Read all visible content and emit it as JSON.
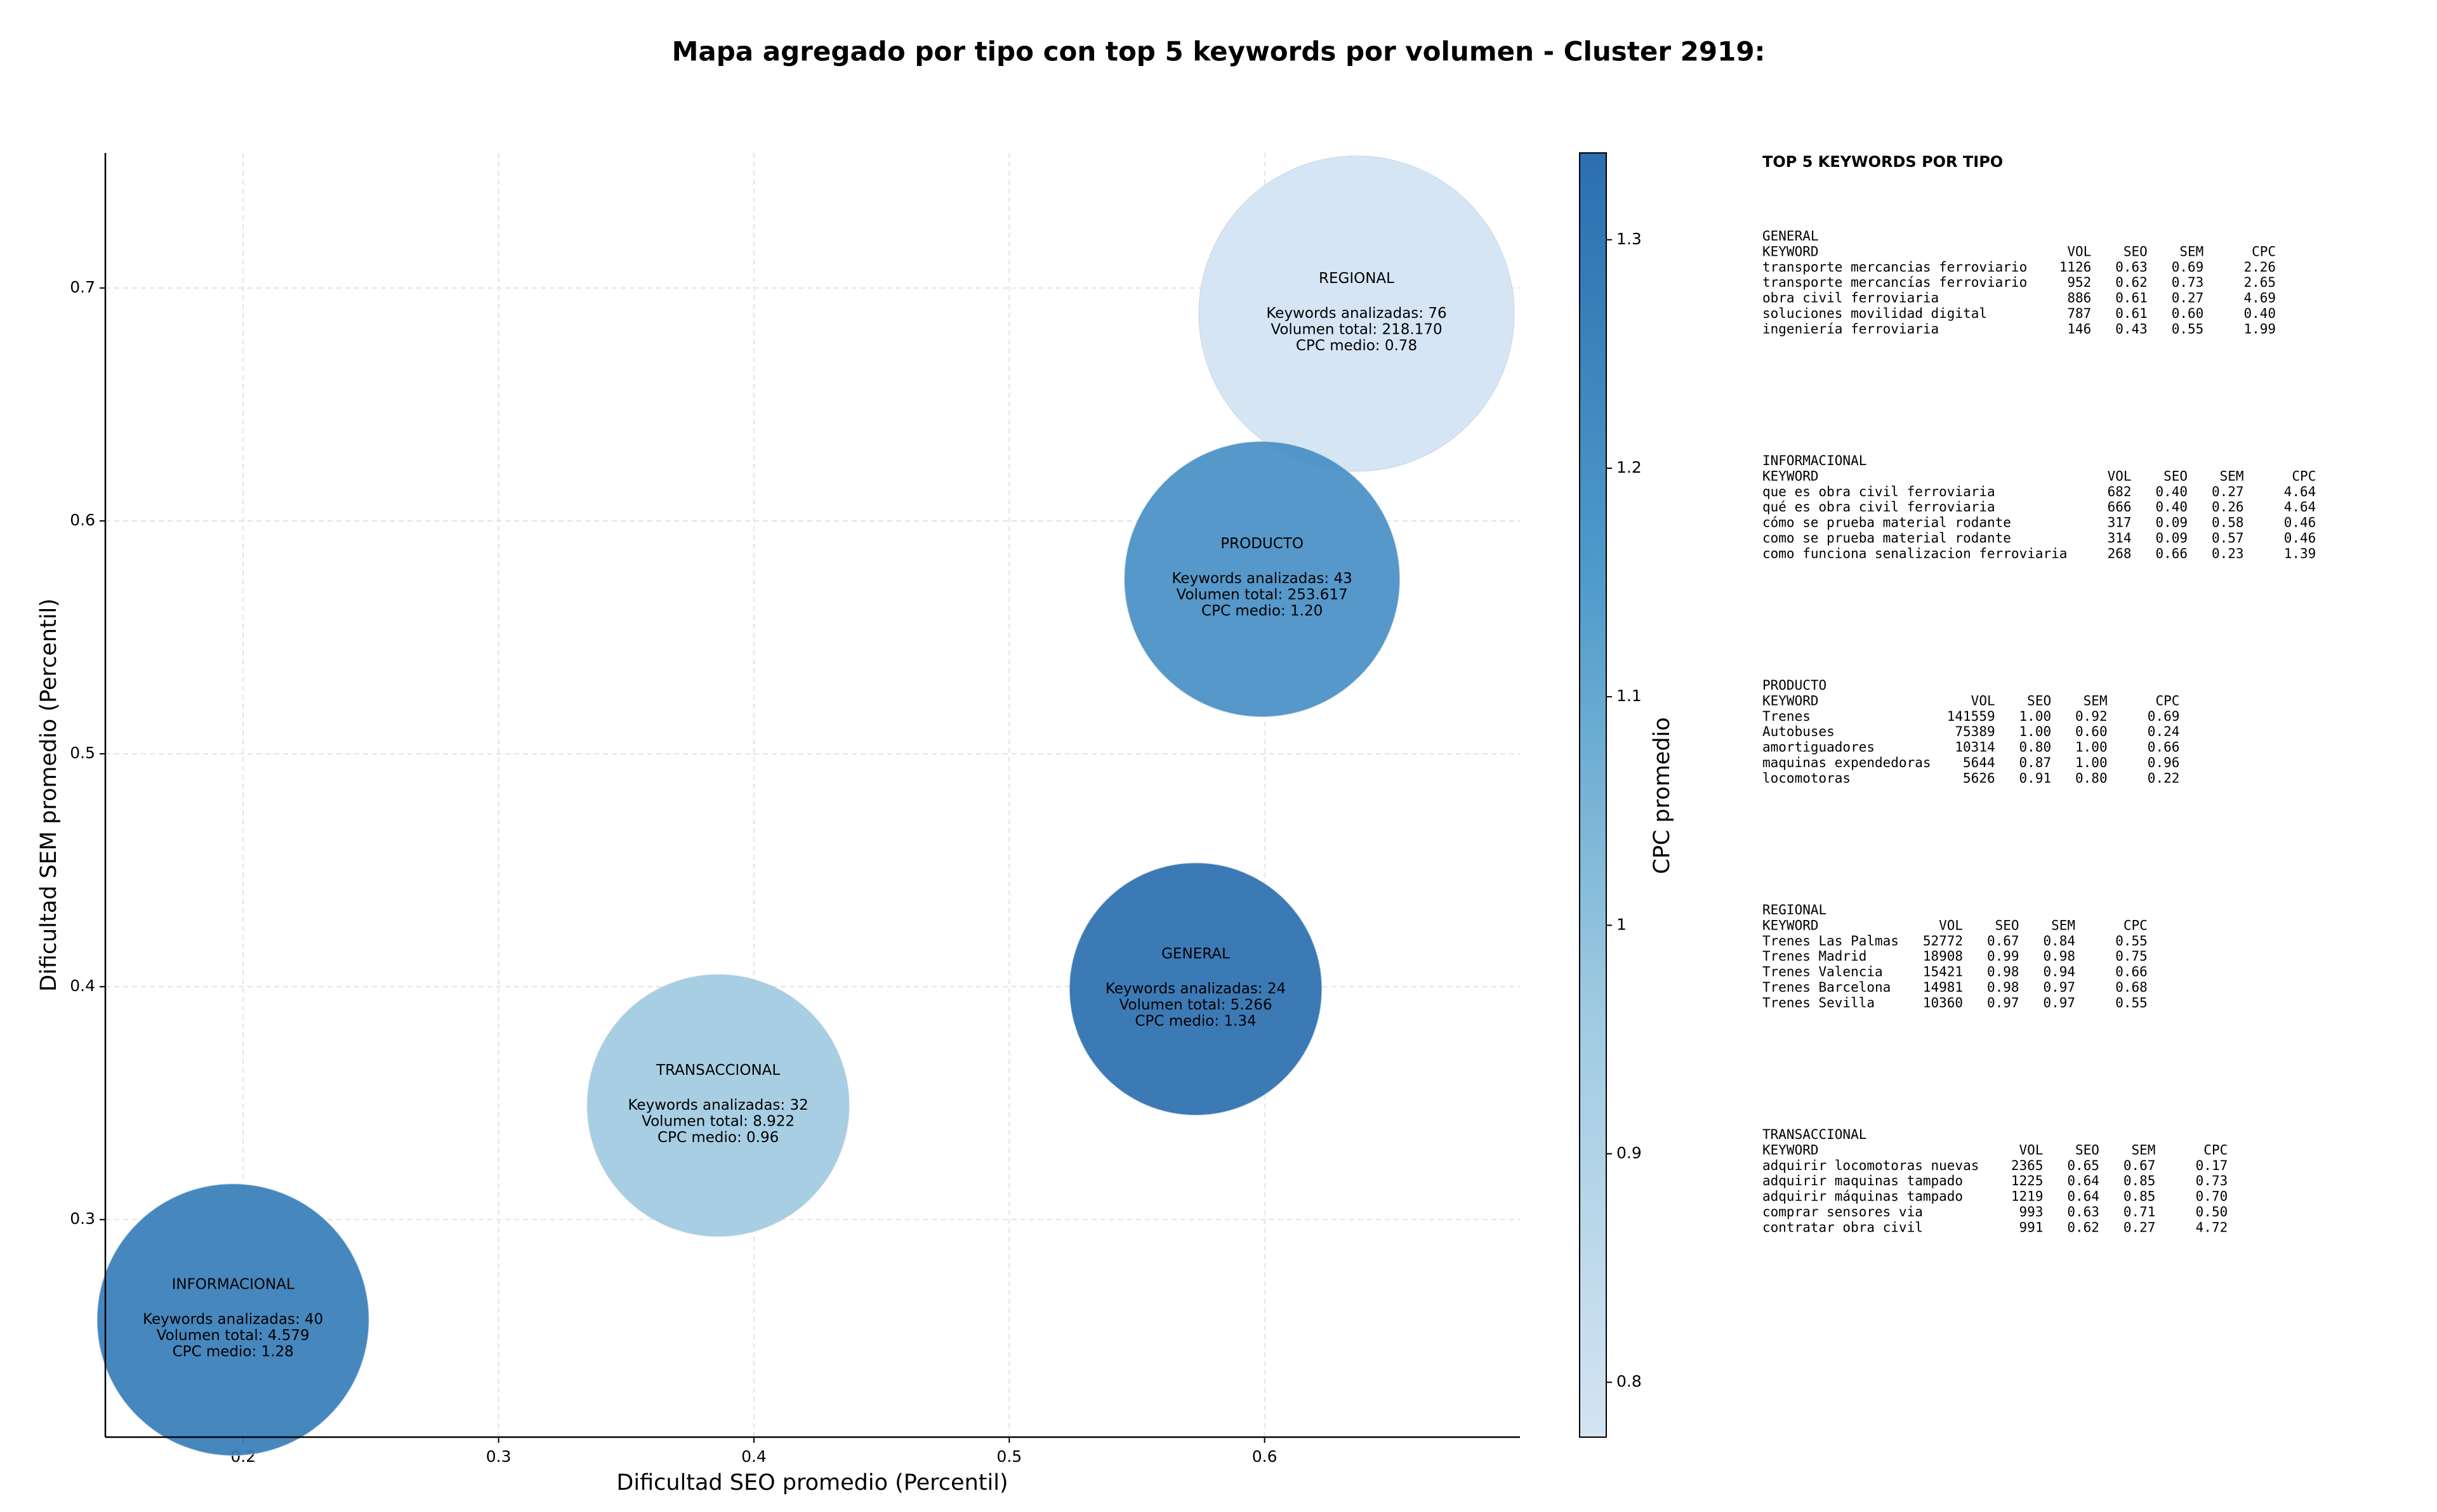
{
  "chart_data": {
    "type": "scatter",
    "title": "Mapa agregado por tipo con top 5 keywords por volumen - Cluster 2919:",
    "xlabel": "Dificultad SEO promedio (Percentil)",
    "ylabel": "Dificultad SEM promedio (Percentil)",
    "colorbar_label": "CPC promedio",
    "xlim": [
      0.146,
      0.7
    ],
    "xticks": [
      0.2,
      0.3,
      0.4,
      0.5,
      0.6
    ],
    "ylim": [
      0.2066,
      0.758
    ],
    "yticks": [
      0.3,
      0.4,
      0.5,
      0.6,
      0.7
    ],
    "clim": [
      0.776,
      1.338
    ],
    "cticks": [
      0.8,
      0.9,
      1.0,
      1.1,
      1.2,
      1.3
    ],
    "colormap": [
      "#d4e4f3",
      "#9ecae1",
      "#4f9bcb",
      "#2b6fb0"
    ],
    "grid": true,
    "points": [
      {
        "name": "REGIONAL",
        "x": 0.636,
        "y": 0.689,
        "cpc": 0.78,
        "keywords": 76,
        "lines": [
          "Keywords analizadas: 76",
          "Volumen total: 218.170",
          "CPC medio: 0.78"
        ]
      },
      {
        "name": "PRODUCTO",
        "x": 0.599,
        "y": 0.575,
        "cpc": 1.2,
        "keywords": 43,
        "lines": [
          "Keywords analizadas: 43",
          "Volumen total: 253.617",
          "CPC medio: 1.20"
        ]
      },
      {
        "name": "GENERAL",
        "x": 0.573,
        "y": 0.399,
        "cpc": 1.34,
        "keywords": 24,
        "lines": [
          "Keywords analizadas: 24",
          "Volumen total: 5.266",
          "CPC medio: 1.34"
        ]
      },
      {
        "name": "TRANSACCIONAL",
        "x": 0.386,
        "y": 0.349,
        "cpc": 0.96,
        "keywords": 32,
        "lines": [
          "Keywords analizadas: 32",
          "Volumen total: 8.922",
          "CPC medio: 0.96"
        ]
      },
      {
        "name": "INFORMACIONAL",
        "x": 0.196,
        "y": 0.257,
        "cpc": 1.28,
        "keywords": 40,
        "lines": [
          "Keywords analizadas: 40",
          "Volumen total: 4.579",
          "CPC medio: 1.28"
        ]
      }
    ]
  },
  "panel": {
    "title": "TOP 5 KEYWORDS POR TIPO",
    "groups": [
      {
        "name": "GENERAL",
        "header": [
          "KEYWORD",
          "VOL",
          "SEO",
          "SEM",
          "CPC"
        ],
        "rows": [
          [
            "transporte mercancias ferroviario",
            "1126",
            "0.63",
            "0.69",
            "2.26"
          ],
          [
            "transporte mercancías ferroviario",
            "952",
            "0.62",
            "0.73",
            "2.65"
          ],
          [
            "obra civil ferroviaria",
            "886",
            "0.61",
            "0.27",
            "4.69"
          ],
          [
            "soluciones movilidad digital",
            "787",
            "0.61",
            "0.60",
            "0.40"
          ],
          [
            "ingeniería ferroviaria",
            "146",
            "0.43",
            "0.55",
            "1.99"
          ]
        ]
      },
      {
        "name": "INFORMACIONAL",
        "header": [
          "KEYWORD",
          "VOL",
          "SEO",
          "SEM",
          "CPC"
        ],
        "rows": [
          [
            "que es obra civil ferroviaria",
            "682",
            "0.40",
            "0.27",
            "4.64"
          ],
          [
            "qué es obra civil ferroviaria",
            "666",
            "0.40",
            "0.26",
            "4.64"
          ],
          [
            "cómo se prueba material rodante",
            "317",
            "0.09",
            "0.58",
            "0.46"
          ],
          [
            "como se prueba material rodante",
            "314",
            "0.09",
            "0.57",
            "0.46"
          ],
          [
            "como funciona senalizacion ferroviaria",
            "268",
            "0.66",
            "0.23",
            "1.39"
          ]
        ]
      },
      {
        "name": "PRODUCTO",
        "header": [
          "KEYWORD",
          "VOL",
          "SEO",
          "SEM",
          "CPC"
        ],
        "rows": [
          [
            "Trenes",
            "141559",
            "1.00",
            "0.92",
            "0.69"
          ],
          [
            "Autobuses",
            "75389",
            "1.00",
            "0.60",
            "0.24"
          ],
          [
            "amortiguadores",
            "10314",
            "0.80",
            "1.00",
            "0.66"
          ],
          [
            "maquinas expendedoras",
            "5644",
            "0.87",
            "1.00",
            "0.96"
          ],
          [
            "locomotoras",
            "5626",
            "0.91",
            "0.80",
            "0.22"
          ]
        ]
      },
      {
        "name": "REGIONAL",
        "header": [
          "KEYWORD",
          "VOL",
          "SEO",
          "SEM",
          "CPC"
        ],
        "rows": [
          [
            "Trenes Las Palmas",
            "52772",
            "0.67",
            "0.84",
            "0.55"
          ],
          [
            "Trenes Madrid",
            "18908",
            "0.99",
            "0.98",
            "0.75"
          ],
          [
            "Trenes Valencia",
            "15421",
            "0.98",
            "0.94",
            "0.66"
          ],
          [
            "Trenes Barcelona",
            "14981",
            "0.98",
            "0.97",
            "0.68"
          ],
          [
            "Trenes Sevilla",
            "10360",
            "0.97",
            "0.97",
            "0.55"
          ]
        ]
      },
      {
        "name": "TRANSACCIONAL",
        "header": [
          "KEYWORD",
          "VOL",
          "SEO",
          "SEM",
          "CPC"
        ],
        "rows": [
          [
            "adquirir locomotoras nuevas",
            "2365",
            "0.65",
            "0.67",
            "0.17"
          ],
          [
            "adquirir maquinas tampado",
            "1225",
            "0.64",
            "0.85",
            "0.73"
          ],
          [
            "adquirir máquinas tampado",
            "1219",
            "0.64",
            "0.85",
            "0.70"
          ],
          [
            "comprar sensores via",
            "993",
            "0.63",
            "0.71",
            "0.50"
          ],
          [
            "contratar obra civil",
            "991",
            "0.62",
            "0.27",
            "4.72"
          ]
        ]
      }
    ]
  }
}
